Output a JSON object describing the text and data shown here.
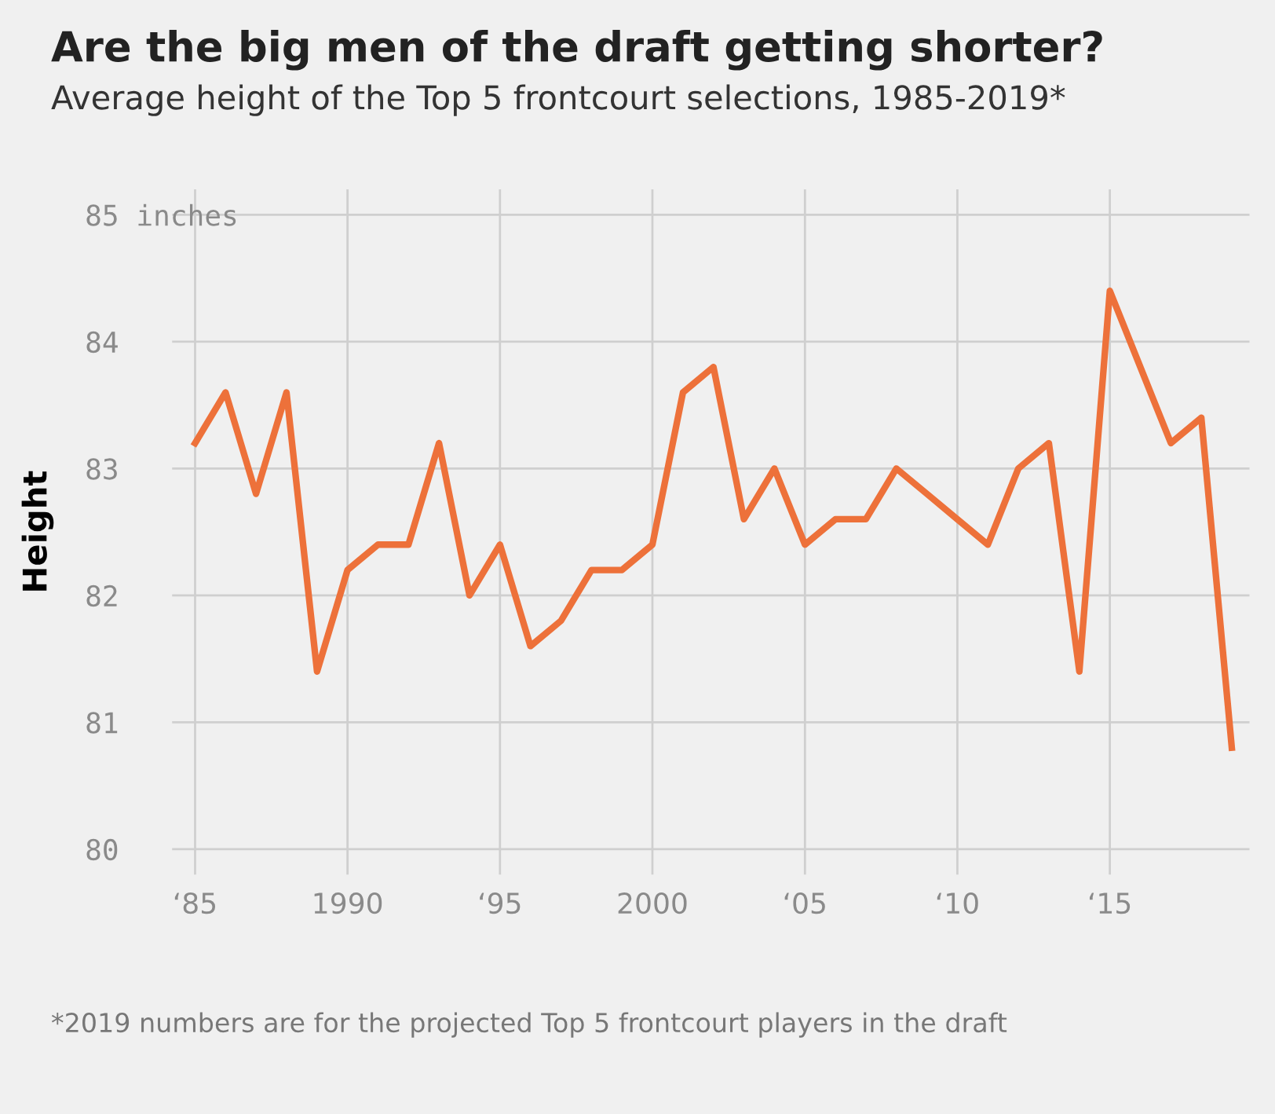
{
  "chart_data": {
    "type": "line",
    "title": "Are the big men of the draft getting shorter?",
    "subtitle": "Average height of the Top 5 frontcourt selections, 1985-2019*",
    "ylabel": "Height",
    "annotations": [
      "*2019 numbers are for the projected Top 5 frontcourt players in the draft"
    ],
    "x": [
      "1985",
      "1986",
      "1987",
      "1988",
      "1989",
      "1990",
      "1991",
      "1992",
      "1993",
      "1994",
      "1995",
      "1996",
      "1997",
      "1998",
      "1999",
      "2000",
      "2001",
      "2002",
      "2003",
      "2004",
      "2005",
      "2006",
      "2007",
      "2008",
      "2009",
      "2010",
      "2011",
      "2012",
      "2013",
      "2014",
      "2015",
      "2016",
      "2017",
      "2018",
      "2019"
    ],
    "series": [
      {
        "color": "#ed713a",
        "values": [
          83.2,
          83.6,
          82.8,
          83.6,
          81.4,
          82.2,
          82.4,
          82.4,
          83.2,
          82.0,
          82.4,
          81.6,
          81.8,
          82.2,
          82.2,
          82.4,
          83.6,
          83.8,
          82.6,
          83.0,
          82.4,
          82.6,
          82.6,
          83.0,
          82.8,
          82.6,
          82.4,
          83.0,
          83.2,
          81.4,
          84.4,
          83.8,
          83.2,
          83.4,
          80.8
        ]
      }
    ],
    "xlim": [
      "1984-04",
      "2019-08"
    ],
    "ylim": [
      79.8,
      85.2
    ],
    "xticks": [
      {
        "value": "1985",
        "label": "‘85"
      },
      {
        "value": "1990",
        "label": "1990"
      },
      {
        "value": "1995",
        "label": "‘95"
      },
      {
        "value": "2000",
        "label": "2000"
      },
      {
        "value": "2005",
        "label": "‘05"
      },
      {
        "value": "2010",
        "label": "‘10"
      },
      {
        "value": "2015",
        "label": "‘15"
      }
    ],
    "yticks": [
      80,
      81,
      82,
      83,
      84,
      {
        "value": 85,
        "label": "85 inches"
      }
    ],
    "grid": true,
    "line_style": "solid",
    "marker": "none"
  }
}
